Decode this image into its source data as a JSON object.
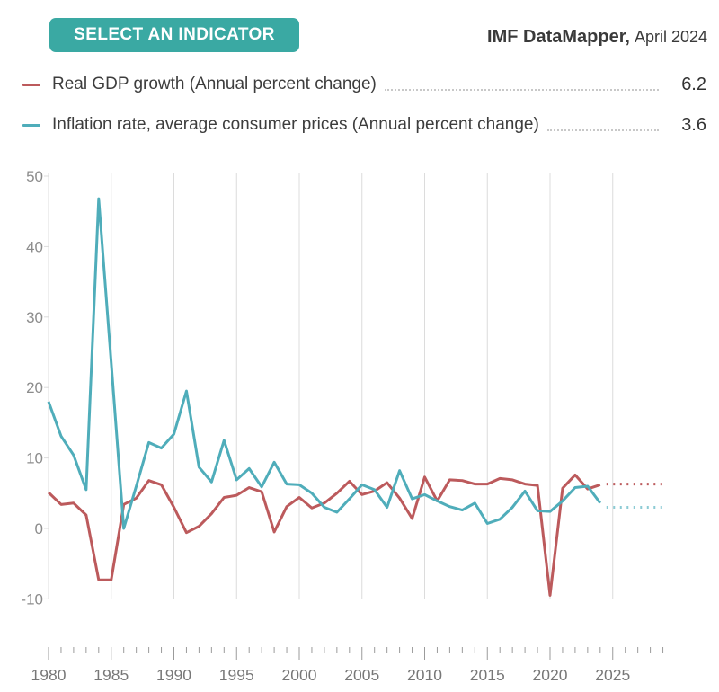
{
  "header": {
    "indicator_button": "SELECT AN INDICATOR",
    "brand": "IMF DataMapper,",
    "edition": "April 2024"
  },
  "legend": {
    "items": [
      {
        "label": "Real GDP growth (Annual percent change)",
        "value": "6.2",
        "color": "#BC5A5C"
      },
      {
        "label": "Inflation rate, average consumer prices (Annual percent change)",
        "value": "3.6",
        "color": "#4FADBA"
      }
    ]
  },
  "chart_data": {
    "type": "line",
    "title": "",
    "xlabel": "",
    "ylabel": "",
    "ylim": [
      -10,
      50
    ],
    "grid": "vertical-only",
    "legend_position": "top",
    "y_ticks": [
      50,
      40,
      30,
      20,
      10,
      0,
      -10
    ],
    "x_tick_labels": [
      1980,
      1985,
      1990,
      1995,
      2000,
      2005,
      2010,
      2015,
      2020,
      2025
    ],
    "x_minor_tick_start": 1980,
    "x_minor_tick_end": 2029,
    "gridline_years": [
      1980,
      1985,
      1990,
      1995,
      2000,
      2005,
      2010,
      2015,
      2020,
      2025
    ],
    "years": [
      1980,
      1981,
      1982,
      1983,
      1984,
      1985,
      1986,
      1987,
      1988,
      1989,
      1990,
      1991,
      1992,
      1993,
      1994,
      1995,
      1996,
      1997,
      1998,
      1999,
      2000,
      2001,
      2002,
      2003,
      2004,
      2005,
      2006,
      2007,
      2008,
      2009,
      2010,
      2011,
      2012,
      2013,
      2014,
      2015,
      2016,
      2017,
      2018,
      2019,
      2020,
      2021,
      2022,
      2023,
      2024
    ],
    "series": [
      {
        "name": "Real GDP growth (Annual percent change)",
        "color": "#BC5A5C",
        "projection_color": "#BC5A5C",
        "values": [
          5.1,
          3.4,
          3.6,
          1.9,
          -7.3,
          -7.3,
          3.4,
          4.3,
          6.8,
          6.2,
          3.0,
          -0.6,
          0.3,
          2.1,
          4.4,
          4.7,
          5.8,
          5.2,
          -0.5,
          3.1,
          4.4,
          2.9,
          3.6,
          5.0,
          6.7,
          4.8,
          5.3,
          6.5,
          4.3,
          1.4,
          7.3,
          3.9,
          6.9,
          6.8,
          6.3,
          6.3,
          7.1,
          6.9,
          6.3,
          6.1,
          -9.5,
          5.7,
          7.6,
          5.6,
          6.2
        ],
        "projection_years": [
          2025,
          2026,
          2027,
          2028,
          2029
        ],
        "projection_values": [
          6.3,
          6.3,
          6.3,
          6.3,
          6.3
        ]
      },
      {
        "name": "Inflation rate, average consumer prices (Annual percent change)",
        "color": "#4FADBA",
        "projection_color": "#8CCBD4",
        "values": [
          18.0,
          13.1,
          10.4,
          5.5,
          46.8,
          23.5,
          0.0,
          6.0,
          12.2,
          11.4,
          13.4,
          19.5,
          8.7,
          6.6,
          12.5,
          6.9,
          8.5,
          5.9,
          9.4,
          6.3,
          6.2,
          5.0,
          3.0,
          2.3,
          4.2,
          6.2,
          5.5,
          3.0,
          8.2,
          4.2,
          4.8,
          3.9,
          3.1,
          2.6,
          3.6,
          0.7,
          1.3,
          3.0,
          5.3,
          2.5,
          2.4,
          3.9,
          5.8,
          6.0,
          3.6
        ],
        "projection_years": [
          2025,
          2026,
          2027,
          2028,
          2029
        ],
        "projection_values": [
          3.0,
          3.0,
          3.0,
          3.0,
          3.0
        ]
      }
    ],
    "colors": {
      "gridline": "#DCDCDC",
      "axis_tick": "#9B9B9B",
      "y_label": "#8C8C8C",
      "x_label": "#777777"
    }
  }
}
